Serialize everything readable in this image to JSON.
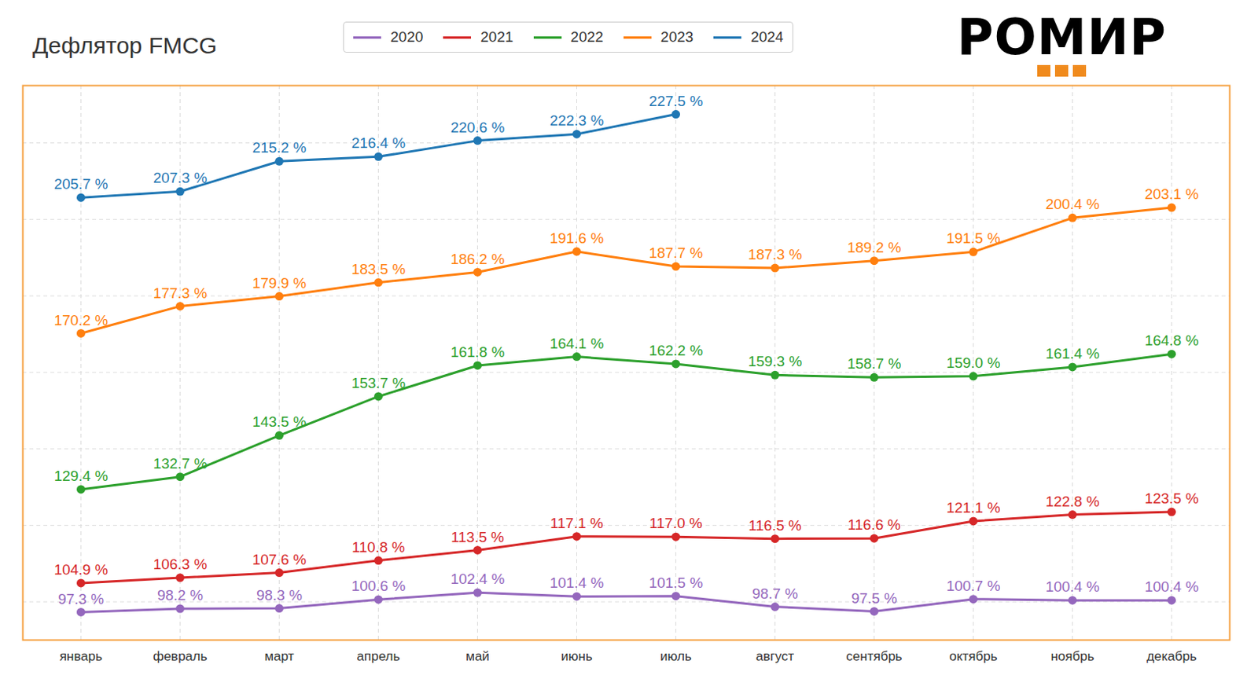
{
  "chart_data": {
    "type": "line",
    "title": "Дефлятор FMCG",
    "logo": "РОМИР",
    "categories": [
      "январь",
      "февраль",
      "март",
      "апрель",
      "май",
      "июнь",
      "июль",
      "август",
      "сентябрь",
      "октябрь",
      "ноябрь",
      "декабрь"
    ],
    "series": [
      {
        "name": "2020",
        "color": "#9467bd",
        "values": [
          97.3,
          98.2,
          98.3,
          100.6,
          102.4,
          101.4,
          101.5,
          98.7,
          97.5,
          100.7,
          100.4,
          100.4
        ],
        "value_labels": [
          "97.3 %",
          "98.2 %",
          "98.3 %",
          "100.6 %",
          "102.4 %",
          "101.4 %",
          "101.5 %",
          "98.7 %",
          "97.5 %",
          "100.7 %",
          "100.4 %",
          "100.4 %"
        ]
      },
      {
        "name": "2021",
        "color": "#d62728",
        "values": [
          104.9,
          106.3,
          107.6,
          110.8,
          113.5,
          117.1,
          117.0,
          116.5,
          116.6,
          121.1,
          122.8,
          123.5
        ],
        "value_labels": [
          "104.9 %",
          "106.3 %",
          "107.6 %",
          "110.8 %",
          "113.5 %",
          "117.1 %",
          "117.0 %",
          "116.5 %",
          "116.6 %",
          "121.1 %",
          "122.8 %",
          "123.5 %"
        ]
      },
      {
        "name": "2022",
        "color": "#2ca02c",
        "values": [
          129.4,
          132.7,
          143.5,
          153.7,
          161.8,
          164.1,
          162.2,
          159.3,
          158.7,
          159.0,
          161.4,
          164.8
        ],
        "value_labels": [
          "129.4 %",
          "132.7 %",
          "143.5 %",
          "153.7 %",
          "161.8 %",
          "164.1 %",
          "162.2 %",
          "159.3 %",
          "158.7 %",
          "159.0 %",
          "161.4 %",
          "164.8 %"
        ]
      },
      {
        "name": "2023",
        "color": "#ff7f0e",
        "values": [
          170.2,
          177.3,
          179.9,
          183.5,
          186.2,
          191.6,
          187.7,
          187.3,
          189.2,
          191.5,
          200.4,
          203.1
        ],
        "value_labels": [
          "170.2 %",
          "177.3 %",
          "179.9 %",
          "183.5 %",
          "186.2 %",
          "191.6 %",
          "187.7 %",
          "187.3 %",
          "189.2 %",
          "191.5 %",
          "200.4 %",
          "203.1 %"
        ]
      },
      {
        "name": "2024",
        "color": "#1f77b4",
        "values": [
          205.7,
          207.3,
          215.2,
          216.4,
          220.6,
          222.3,
          227.5,
          null,
          null,
          null,
          null,
          null
        ],
        "value_labels": [
          "205.7 %",
          "207.3 %",
          "215.2 %",
          "216.4 %",
          "220.6 %",
          "222.3 %",
          "227.5 %",
          null,
          null,
          null,
          null,
          null
        ]
      }
    ],
    "ylim": [
      90,
      235
    ],
    "yticks": [
      100,
      120,
      140,
      160,
      180,
      200,
      220
    ],
    "grid": true,
    "legend": "top",
    "data_labels": true,
    "tick_labels": "x",
    "marker": "circle"
  }
}
